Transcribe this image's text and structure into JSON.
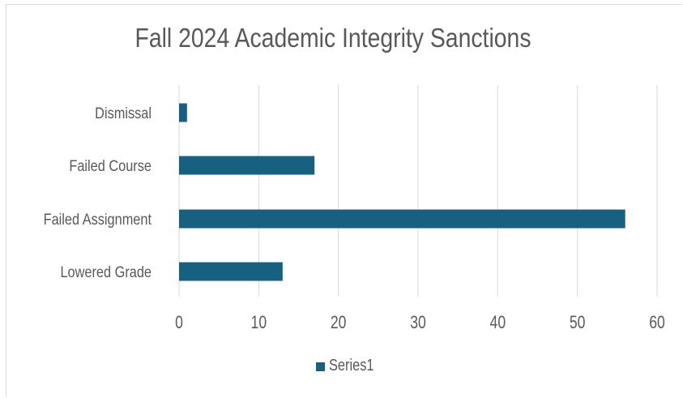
{
  "chart_data": {
    "type": "bar",
    "orientation": "horizontal",
    "title": "Fall 2024 Academic Integrity Sanctions",
    "categories": [
      "Dismissal",
      "Failed Course",
      "Failed Assignment",
      "Lowered Grade"
    ],
    "series": [
      {
        "name": "Series1",
        "values": [
          1,
          17,
          56,
          13
        ],
        "color": "#17607f"
      }
    ],
    "xlim": [
      0,
      60
    ],
    "xticks": [
      0,
      10,
      20,
      30,
      40,
      50,
      60
    ],
    "xlabel": "",
    "ylabel": "",
    "grid": true,
    "legend": "bottom"
  }
}
